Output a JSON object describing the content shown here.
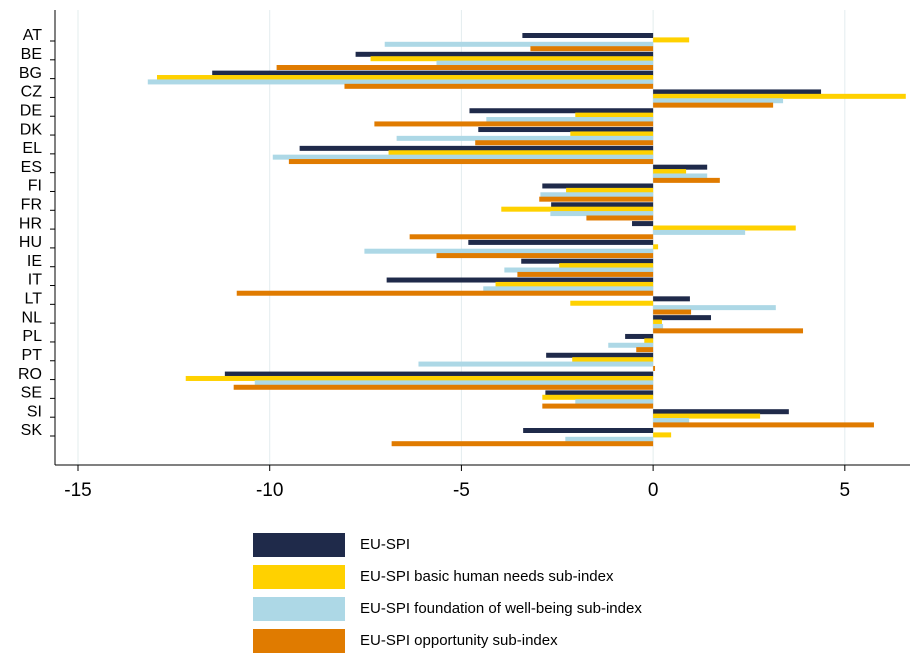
{
  "chart_data": {
    "type": "bar",
    "orientation": "horizontal",
    "categories": [
      "AT",
      "BE",
      "BG",
      "CZ",
      "DE",
      "DK",
      "EL",
      "ES",
      "FI",
      "FR",
      "HR",
      "HU",
      "IE",
      "IT",
      "LT",
      "NL",
      "PL",
      "PT",
      "RO",
      "SE",
      "SI",
      "SK"
    ],
    "series": [
      {
        "name": "EU-SPI",
        "color": "#1f2a4a",
        "values": [
          -3.41,
          -7.76,
          -11.5,
          4.38,
          -4.79,
          -4.56,
          -9.22,
          1.41,
          -2.89,
          -2.66,
          -0.55,
          -4.82,
          -3.44,
          -6.95,
          0.96,
          1.51,
          -0.73,
          -2.79,
          -11.17,
          -2.81,
          3.54,
          -3.39
        ]
      },
      {
        "name": "EU-SPI basic human needs sub-index",
        "color": "#ffd100",
        "values": [
          0.94,
          -7.37,
          -12.94,
          6.59,
          -2.03,
          -2.16,
          -6.9,
          0.86,
          -2.27,
          -3.96,
          3.72,
          0.13,
          -2.45,
          -4.11,
          -2.16,
          0.23,
          -0.23,
          -2.11,
          -12.19,
          -2.89,
          2.79,
          0.47
        ]
      },
      {
        "name": "EU-SPI foundation of well-being sub-index",
        "color": "#add8e6",
        "values": [
          -7.0,
          -5.65,
          -13.18,
          3.39,
          -4.35,
          -6.69,
          -9.92,
          1.41,
          -2.94,
          -2.68,
          2.4,
          -7.53,
          -3.88,
          -4.43,
          3.2,
          0.26,
          -1.17,
          -6.12,
          -10.39,
          -2.03,
          0.94,
          -2.29
        ]
      },
      {
        "name": "EU-SPI opportunity sub-index",
        "color": "#e07b00",
        "values": [
          -3.2,
          -9.82,
          -8.05,
          3.13,
          -7.27,
          -4.64,
          -9.5,
          1.74,
          -2.97,
          -1.74,
          -6.35,
          -5.65,
          -3.54,
          -10.86,
          0.99,
          3.91,
          -0.44,
          0.05,
          -10.94,
          -2.89,
          5.76,
          -6.82
        ]
      }
    ],
    "xlim": [
      -15.6,
      6.7
    ],
    "xticks": [
      -15,
      -10,
      -5,
      0,
      5
    ],
    "grid": true,
    "legend": "bottom"
  }
}
